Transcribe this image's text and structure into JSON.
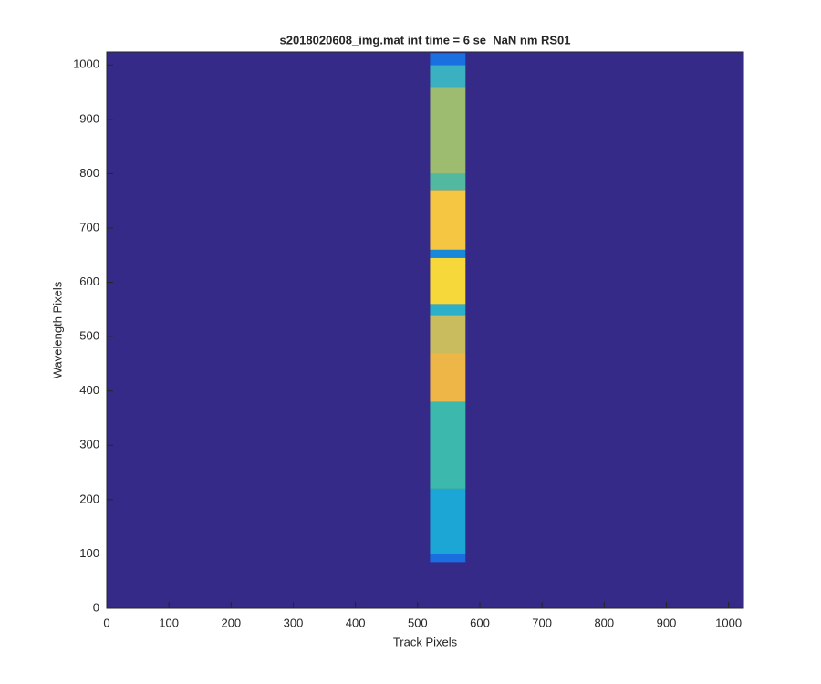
{
  "chart_data": {
    "type": "image",
    "title": "s2018020608_img.mat int time = 6 se  NaN nm RS01",
    "x_label": "Track Pixels",
    "y_label": "Wavelength Pixels",
    "xlim": [
      0,
      1024
    ],
    "ylim": [
      0,
      1024
    ],
    "xticks": [
      0,
      100,
      200,
      300,
      400,
      500,
      600,
      700,
      800,
      900,
      1000
    ],
    "yticks": [
      0,
      100,
      200,
      300,
      400,
      500,
      600,
      700,
      800,
      900,
      1000
    ],
    "background": "#352a87",
    "bands": [
      {
        "x0": 520,
        "x1": 577,
        "y0": 85,
        "y1": 100,
        "color": "#1a6ee0"
      },
      {
        "x0": 520,
        "x1": 577,
        "y0": 100,
        "y1": 220,
        "color": "#1ca6d6"
      },
      {
        "x0": 520,
        "x1": 577,
        "y0": 220,
        "y1": 380,
        "color": "#3cb8ad"
      },
      {
        "x0": 520,
        "x1": 577,
        "y0": 380,
        "y1": 470,
        "color": "#eeb646"
      },
      {
        "x0": 520,
        "x1": 577,
        "y0": 470,
        "y1": 540,
        "color": "#c8bc5e"
      },
      {
        "x0": 520,
        "x1": 577,
        "y0": 540,
        "y1": 560,
        "color": "#2ab0c8"
      },
      {
        "x0": 520,
        "x1": 577,
        "y0": 560,
        "y1": 645,
        "color": "#f7d83a"
      },
      {
        "x0": 520,
        "x1": 577,
        "y0": 645,
        "y1": 660,
        "color": "#1a88d8"
      },
      {
        "x0": 520,
        "x1": 577,
        "y0": 660,
        "y1": 770,
        "color": "#f4c642"
      },
      {
        "x0": 520,
        "x1": 577,
        "y0": 770,
        "y1": 800,
        "color": "#52b8a0"
      },
      {
        "x0": 520,
        "x1": 577,
        "y0": 800,
        "y1": 960,
        "color": "#9ebc70"
      },
      {
        "x0": 520,
        "x1": 577,
        "y0": 960,
        "y1": 1000,
        "color": "#3ab0c0"
      },
      {
        "x0": 520,
        "x1": 577,
        "y0": 1000,
        "y1": 1022,
        "color": "#1a70e0"
      }
    ]
  }
}
